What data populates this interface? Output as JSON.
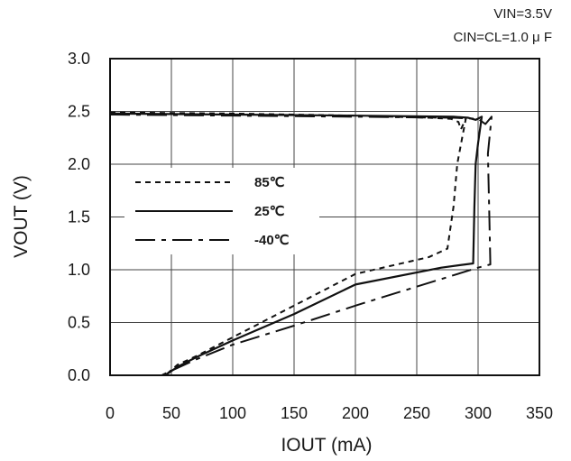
{
  "chart_data": {
    "type": "line",
    "title": "",
    "conditions": [
      "VIN=3.5V",
      "CIN=CL=1.0 μ F"
    ],
    "xlabel": "IOUT (mA)",
    "ylabel": "VOUT (V)",
    "xlim": [
      0,
      350
    ],
    "ylim": [
      0,
      3.0
    ],
    "xticks": [
      0,
      50,
      100,
      150,
      200,
      250,
      300,
      350
    ],
    "yticks": [
      0.0,
      0.5,
      1.0,
      1.5,
      2.0,
      2.5,
      3.0
    ],
    "xtick_labels": [
      "0",
      "50",
      "100",
      "150",
      "200",
      "250",
      "300",
      "350"
    ],
    "ytick_labels": [
      "0.0",
      "0.5",
      "1.0",
      "1.5",
      "2.0",
      "2.5",
      "3.0"
    ],
    "grid": true,
    "legend_position": "left",
    "series": [
      {
        "name": "85℃",
        "style": "dotted",
        "x": [
          0,
          100,
          200,
          260,
          278,
          284,
          286,
          290,
          287,
          283,
          280,
          275,
          260,
          200,
          150,
          100,
          70,
          55,
          45
        ],
        "y": [
          2.49,
          2.48,
          2.46,
          2.44,
          2.43,
          2.4,
          2.33,
          2.43,
          2.25,
          2.0,
          1.6,
          1.2,
          1.12,
          0.96,
          0.66,
          0.36,
          0.18,
          0.1,
          0.0
        ]
      },
      {
        "name": "25℃",
        "style": "solid",
        "x": [
          0,
          100,
          200,
          280,
          292,
          298,
          303,
          300,
          298,
          297,
          296,
          270,
          200,
          150,
          100,
          70,
          55,
          45
        ],
        "y": [
          2.48,
          2.47,
          2.46,
          2.45,
          2.44,
          2.42,
          2.45,
          2.2,
          2.0,
          1.6,
          1.06,
          1.02,
          0.86,
          0.58,
          0.33,
          0.17,
          0.08,
          0.0
        ]
      },
      {
        "name": "-40℃",
        "style": "dashed",
        "x": [
          0,
          100,
          200,
          280,
          300,
          306,
          311,
          308,
          309,
          310,
          300,
          200,
          150,
          100,
          70,
          55,
          42
        ],
        "y": [
          2.47,
          2.46,
          2.45,
          2.44,
          2.43,
          2.38,
          2.45,
          2.1,
          1.6,
          1.05,
          1.02,
          0.66,
          0.47,
          0.29,
          0.15,
          0.07,
          0.0
        ]
      }
    ]
  }
}
